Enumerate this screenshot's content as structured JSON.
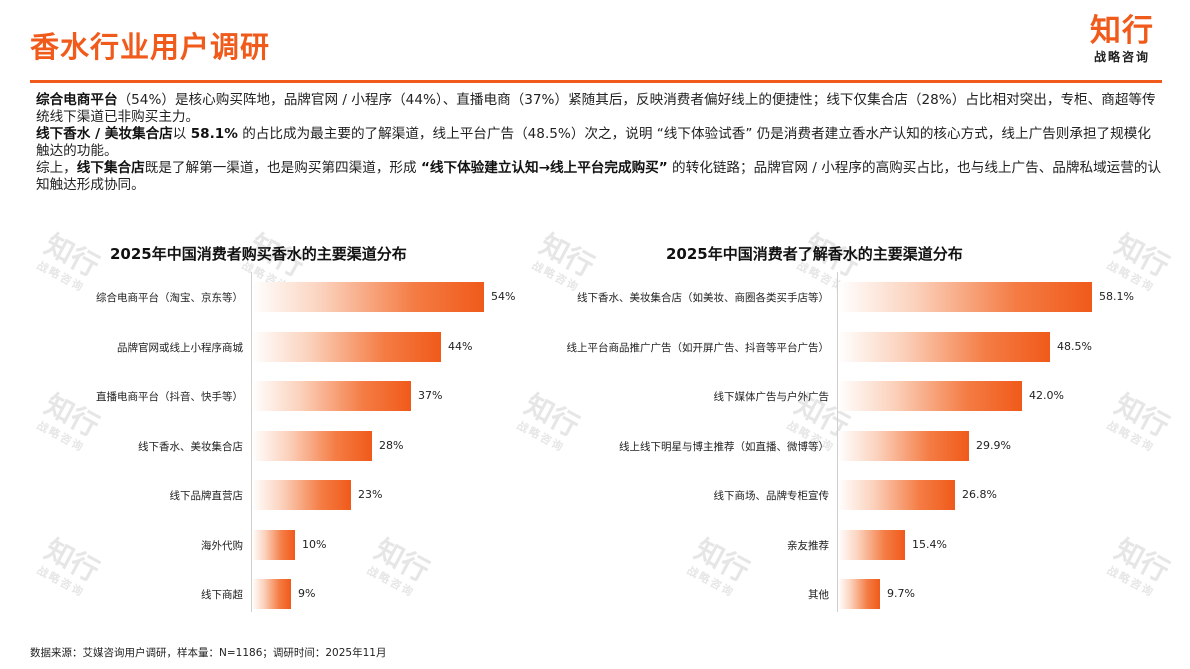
{
  "header": {
    "title": "香水行业用户调研",
    "logo_main": "知行",
    "logo_sub": "战略咨询"
  },
  "summary": {
    "p1": {
      "b1": "综合电商平台",
      "t1": "（54%）是核心购买阵地，品牌官网 / 小程序（44%）、直播电商（37%）紧随其后，反映消费者偏好线上的便捷性；线下仅集合店（28%）占比相对突出，专柜、商超等传统线下渠道已非购买主力。"
    },
    "p2": {
      "b1": "线下香水 / 美妆集合店",
      "t1": "以 ",
      "b2": "58.1%",
      "t2": " 的占比成为最主要的了解渠道，线上平台广告（48.5%）次之，说明 “线下体验试香” 仍是消费者建立香水产认知的核心方式，线上广告则承担了规模化触达的功能。"
    },
    "p3": {
      "t1": "综上，",
      "b1": "线下集合店",
      "t2": "既是了解第一渠道，也是购买第四渠道，形成 ",
      "b2": "“线下体验建立认知→线上平台完成购买”",
      "t3": " 的转化链路；品牌官网 / 小程序的高购买占比，也与线上广告、品牌私域运营的认知触达形成协同。"
    }
  },
  "watermark": {
    "main": "知行",
    "sub": "战略咨询"
  },
  "chart_data": [
    {
      "type": "bar",
      "orientation": "horizontal",
      "title": "2025年中国消费者购买香水的主要渠道分布",
      "categories": [
        "综合电商平台（淘宝、京东等）",
        "品牌官网或线上小程序商城",
        "直播电商平台（抖音、快手等）",
        "线下香水、美妆集合店",
        "线下品牌直营店",
        "海外代购",
        "线下商超"
      ],
      "values": [
        54,
        44,
        37,
        28,
        23,
        10,
        9
      ],
      "value_labels": [
        "54%",
        "44%",
        "37%",
        "28%",
        "23%",
        "10%",
        "9%"
      ],
      "unit": "%",
      "xlim": [
        0,
        60
      ],
      "colors": {
        "bar_start": "#ffffff",
        "bar_end": "#f05a1a"
      }
    },
    {
      "type": "bar",
      "orientation": "horizontal",
      "title": "2025年中国消费者了解香水的主要渠道分布",
      "categories": [
        "线下香水、美妆集合店（如美妆、商圈各类买手店等）",
        "线上平台商品推广广告（如开屏广告、抖音等平台广告）",
        "线下媒体广告与户外广告",
        "线上线下明星与博主推荐（如直播、微博等）",
        "线下商场、品牌专柜宣传",
        "亲友推荐",
        "其他"
      ],
      "values": [
        58.1,
        48.5,
        42.0,
        29.9,
        26.8,
        15.4,
        9.7
      ],
      "value_labels": [
        "58.1%",
        "48.5%",
        "42.0%",
        "29.9%",
        "26.8%",
        "15.4%",
        "9.7%"
      ],
      "unit": "%",
      "xlim": [
        0,
        60
      ],
      "colors": {
        "bar_start": "#ffffff",
        "bar_end": "#f05a1a"
      }
    }
  ],
  "footer": {
    "source": "数据来源：艾媒咨询用户调研，样本量：N=1186；调研时间：2025年11月"
  }
}
